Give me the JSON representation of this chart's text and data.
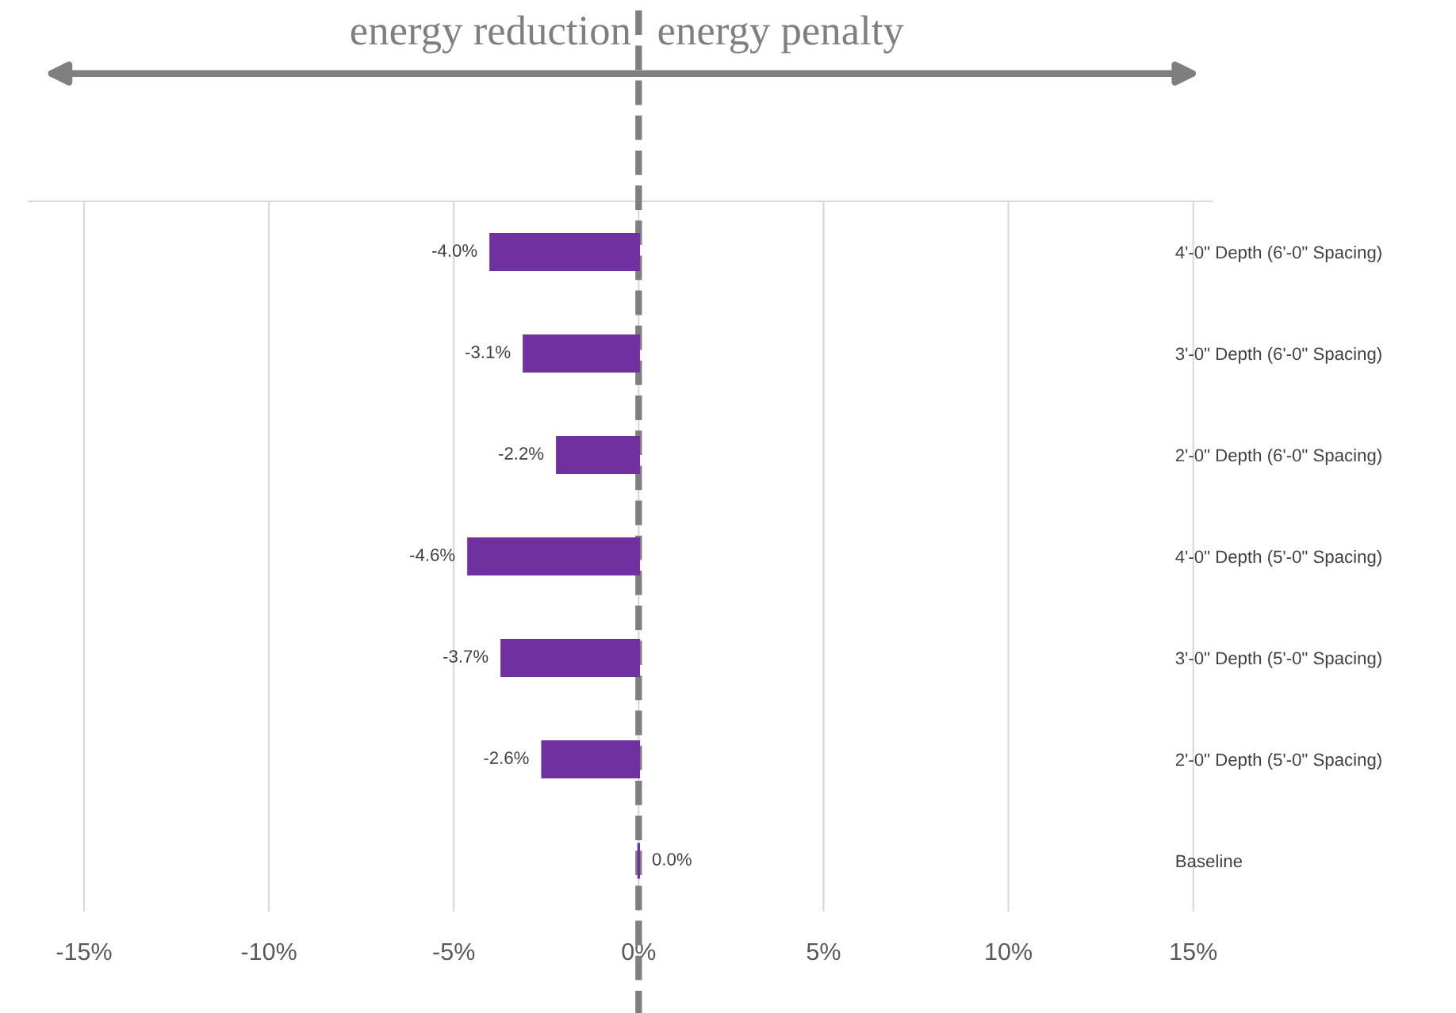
{
  "chart_data": {
    "type": "bar",
    "orientation": "horizontal",
    "categories": [
      "4'-0\" Depth (6'-0\" Spacing)",
      "3'-0\" Depth (6'-0\" Spacing)",
      "2'-0\" Depth (6'-0\" Spacing)",
      "4'-0\" Depth (5'-0\" Spacing)",
      "3'-0\" Depth (5'-0\" Spacing)",
      "2'-0\" Depth (5'-0\" Spacing)",
      "Baseline"
    ],
    "values": [
      -4.0,
      -3.1,
      -2.2,
      -4.6,
      -3.7,
      -2.6,
      0.0
    ],
    "value_labels": [
      "-4.0%",
      "-3.1%",
      "-2.2%",
      "-4.6%",
      "-3.7%",
      "-2.6%",
      "0.0%"
    ],
    "color": "#7030a0",
    "xlim": [
      -16.5,
      15.5
    ],
    "xticks": [
      {
        "value": -15,
        "label": "-15%"
      },
      {
        "value": -10,
        "label": "-10%"
      },
      {
        "value": -5,
        "label": "-5%"
      },
      {
        "value": 0,
        "label": "0%"
      },
      {
        "value": 5,
        "label": "5%"
      },
      {
        "value": 10,
        "label": "10%"
      },
      {
        "value": 15,
        "label": "15%"
      }
    ],
    "grid": "x",
    "ref_lines": [
      {
        "axis": "x",
        "value": 0,
        "label": null,
        "color": "#7f7f7f",
        "line_style": "dashed"
      }
    ],
    "annotations": [
      "energy reduction",
      "energy penalty"
    ]
  }
}
